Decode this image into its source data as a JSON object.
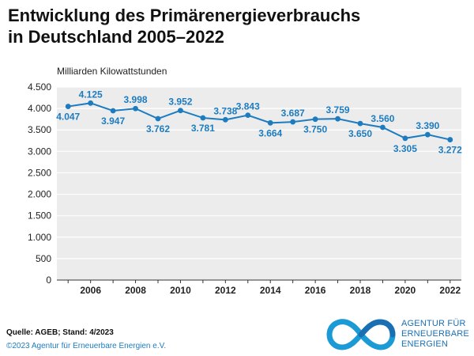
{
  "title_lines": [
    "Entwicklung des Primärenergieverbrauchs",
    "in Deutschland 2005–2022"
  ],
  "footer": {
    "source": "Quelle: AGEB; Stand: 4/2023",
    "copyright": "©2023 Agentur für Erneuerbare Energien e.V."
  },
  "logo": {
    "lines": [
      "AGENTUR FÜR",
      "ERNEUERBARE",
      "ENERGIEN"
    ],
    "icon": "infinity-icon"
  },
  "colors": {
    "line": "#1d7cc0",
    "plot_background": "#ececec",
    "label": "#1d7cc0"
  },
  "chart_data": {
    "type": "line",
    "title": "Entwicklung des Primärenergieverbrauchs in Deutschland 2005–2022",
    "ylabel": "Milliarden Kilowattstunden",
    "xlabel": "",
    "ylim": [
      0,
      4500
    ],
    "yticks": [
      0,
      500,
      1000,
      1500,
      2000,
      2500,
      3000,
      3500,
      4000,
      4500
    ],
    "ytick_labels": [
      "0",
      "500",
      "1.000",
      "1.500",
      "2.000",
      "2.500",
      "3.000",
      "3.500",
      "4.000",
      "4.500"
    ],
    "xticks": [
      2006,
      2008,
      2010,
      2012,
      2014,
      2016,
      2018,
      2020,
      2022
    ],
    "xlim": [
      2004.5,
      2022.5
    ],
    "grid": "horizontal",
    "x": [
      2005,
      2006,
      2007,
      2008,
      2009,
      2010,
      2011,
      2012,
      2013,
      2014,
      2015,
      2016,
      2017,
      2018,
      2019,
      2020,
      2021,
      2022
    ],
    "values": [
      4047,
      4125,
      3947,
      3998,
      3762,
      3952,
      3781,
      3738,
      3843,
      3664,
      3687,
      3750,
      3759,
      3650,
      3560,
      3305,
      3390,
      3272
    ],
    "data_labels": [
      "4.047",
      "4.125",
      "3.947",
      "3.998",
      "3.762",
      "3.952",
      "3.781",
      "3.738",
      "3.843",
      "3.664",
      "3.687",
      "3.750",
      "3.759",
      "3.650",
      "3.560",
      "3.305",
      "3.390",
      "3.272"
    ],
    "label_positions": [
      "below",
      "above",
      "below",
      "above",
      "below",
      "above",
      "below",
      "above",
      "above",
      "below",
      "above",
      "below",
      "above",
      "below",
      "above",
      "below",
      "above",
      "below"
    ]
  }
}
